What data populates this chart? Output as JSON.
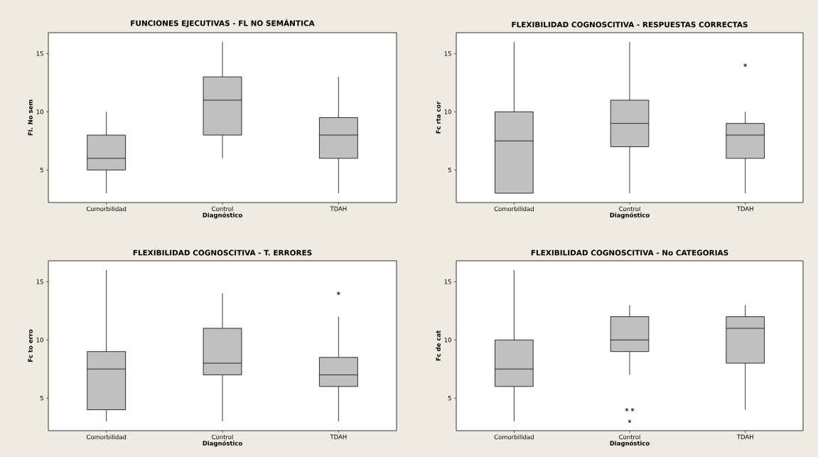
{
  "chart_data": [
    {
      "type": "box",
      "title": "FUNCIONES EJECUTIVAS - FL NO SEMÁNTICA",
      "xlabel": "Diagnóstico",
      "ylabel": "Fl. No sem",
      "categories": [
        "Comorbilidad",
        "Control",
        "TDAH"
      ],
      "ylim": [
        2.2,
        16.8
      ],
      "yticks": [
        5,
        10,
        15
      ],
      "series": [
        {
          "color": "#c0c0c0",
          "boxes": [
            {
              "low": 3,
              "q1": 5,
              "median": 6,
              "q3": 8,
              "high": 10
            },
            {
              "low": 6,
              "q1": 8,
              "median": 11,
              "q3": 13,
              "high": 16
            },
            {
              "low": 3,
              "q1": 6,
              "median": 8,
              "q3": 9.5,
              "high": 13
            }
          ]
        }
      ]
    },
    {
      "type": "box",
      "title": "FLEXIBILIDAD COGNOSCITIVA - RESPUESTAS CORRECTAS",
      "xlabel": "Diagnóstico",
      "ylabel": "Fc rta cor",
      "categories": [
        "Comorbilidad",
        "Control",
        "TDAH"
      ],
      "ylim": [
        2.2,
        16.8
      ],
      "yticks": [
        5,
        10,
        15
      ],
      "series": [
        {
          "color": "#c0c0c0",
          "boxes": [
            {
              "low": 3,
              "q1": 3,
              "median": 7.5,
              "q3": 10,
              "high": 16
            },
            {
              "low": 3,
              "q1": 7,
              "median": 9,
              "q3": 11,
              "high": 16
            },
            {
              "low": 3,
              "q1": 6,
              "median": 8,
              "q3": 9,
              "high": 10,
              "outliers": [
                14
              ]
            }
          ]
        }
      ]
    },
    {
      "type": "box",
      "title": "FLEXIBILIDAD COGNOSCITIVA - T. ERRORES",
      "xlabel": "Diagnóstico",
      "ylabel": "Fc to erro",
      "categories": [
        "Comorbilidad",
        "Control",
        "TDAH"
      ],
      "ylim": [
        2.2,
        16.8
      ],
      "yticks": [
        5,
        10,
        15
      ],
      "series": [
        {
          "color": "#c0c0c0",
          "boxes": [
            {
              "low": 3,
              "q1": 4,
              "median": 7.5,
              "q3": 9,
              "high": 16
            },
            {
              "low": 3,
              "q1": 7,
              "median": 8,
              "q3": 11,
              "high": 14
            },
            {
              "low": 3,
              "q1": 6,
              "median": 7,
              "q3": 8.5,
              "high": 12,
              "outliers": [
                14
              ]
            }
          ]
        }
      ]
    },
    {
      "type": "box",
      "title": "FLEXIBILIDAD COGNOSCITIVA - No CATEGORIAS",
      "xlabel": "Diagnóstico",
      "ylabel": "Fc de cat",
      "categories": [
        "Comorbilidad",
        "Control",
        "TDAH"
      ],
      "ylim": [
        2.2,
        16.8
      ],
      "yticks": [
        5,
        10,
        15
      ],
      "series": [
        {
          "color": "#c0c0c0",
          "boxes": [
            {
              "low": 3,
              "q1": 6,
              "median": 7.5,
              "q3": 10,
              "high": 16
            },
            {
              "low": 7,
              "q1": 9,
              "median": 10,
              "q3": 12,
              "high": 13,
              "outliers": [
                4,
                4,
                3
              ]
            },
            {
              "low": 4,
              "q1": 8,
              "median": 11,
              "q3": 12,
              "high": 13
            }
          ]
        }
      ]
    }
  ]
}
